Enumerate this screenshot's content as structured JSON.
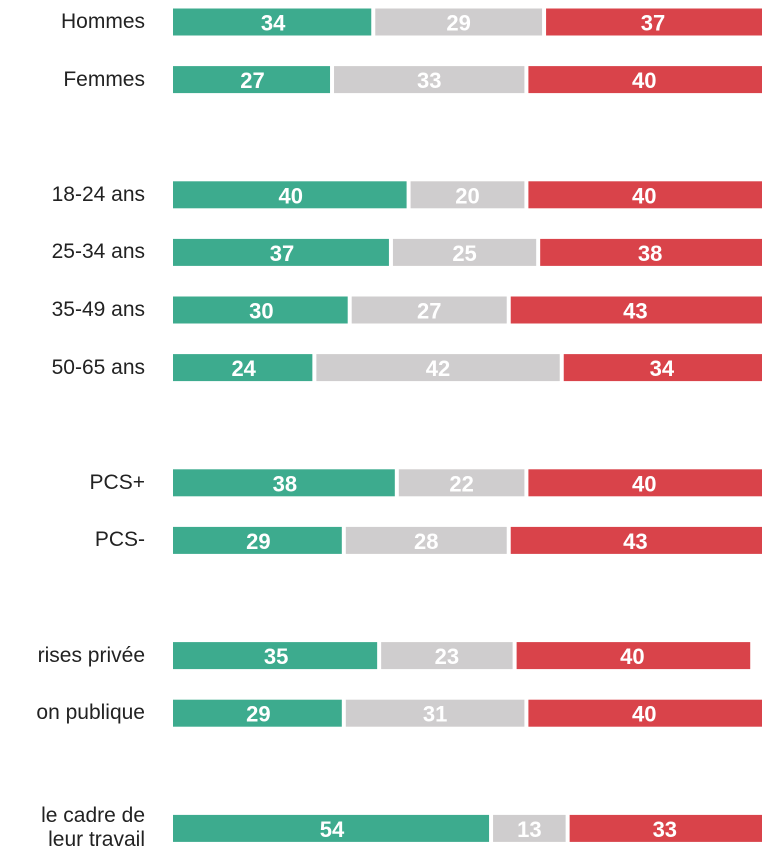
{
  "chart_data": {
    "type": "stacked-bar-horizontal",
    "categories": [
      "Hommes",
      "Femmes",
      null,
      "18-24 ans",
      "25-34 ans",
      "35-49 ans",
      "50-65 ans",
      null,
      "PCS+",
      "PCS-",
      null,
      "rises privée",
      "on publique",
      null,
      "le cadre de\nleur travail"
    ],
    "series": [
      {
        "color": "#3dab8e",
        "values": [
          34,
          27,
          null,
          40,
          37,
          30,
          24,
          null,
          38,
          29,
          null,
          35,
          29,
          null,
          54
        ]
      },
      {
        "color": "#cfcdce",
        "values": [
          29,
          33,
          null,
          20,
          25,
          27,
          42,
          null,
          22,
          28,
          null,
          23,
          31,
          null,
          13
        ]
      },
      {
        "color": "#d9434a",
        "values": [
          37,
          40,
          null,
          40,
          38,
          43,
          34,
          null,
          40,
          43,
          null,
          40,
          40,
          null,
          33
        ]
      }
    ],
    "xlim": [
      0,
      100
    ]
  }
}
